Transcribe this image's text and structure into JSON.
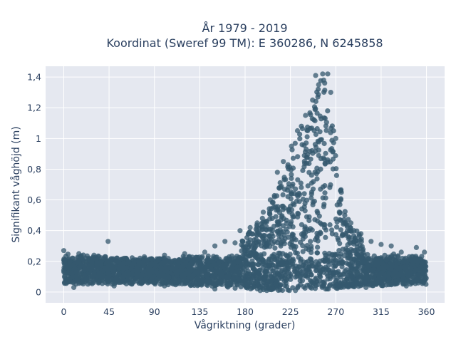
{
  "chart_data": {
    "type": "scatter",
    "title_lines": [
      "År 1979 - 2019",
      "Koordinat (Sweref 99 TM): E 360286, N 6245858"
    ],
    "xlabel": "Vågriktning (grader)",
    "ylabel": "Signifikant våghöjd (m)",
    "xlim": [
      -18,
      378
    ],
    "ylim": [
      -0.07,
      1.47
    ],
    "x_ticks": [
      0,
      45,
      90,
      135,
      180,
      225,
      270,
      315,
      360
    ],
    "x_tick_labels": [
      "0",
      "45",
      "90",
      "135",
      "180",
      "225",
      "270",
      "315",
      "360"
    ],
    "y_ticks": [
      0,
      0.2,
      0.4,
      0.6,
      0.8,
      1.0,
      1.2,
      1.4
    ],
    "y_tick_labels": [
      "0",
      "0,2",
      "0,4",
      "0,6",
      "0,8",
      "1",
      "1,2",
      "1,4"
    ],
    "grid": true,
    "colors": {
      "marker": "#34586e",
      "plot_background": "#e5e8f0",
      "grid": "#ffffff"
    },
    "series": [
      {
        "envelope_x": [
          0,
          45,
          90,
          135,
          160,
          180,
          200,
          215,
          225,
          235,
          245,
          250,
          255,
          260,
          265,
          270,
          280,
          300,
          315,
          330,
          360
        ],
        "envelope_max": [
          0.26,
          0.23,
          0.22,
          0.24,
          0.31,
          0.36,
          0.5,
          0.72,
          0.9,
          1.07,
          1.24,
          1.33,
          1.38,
          1.4,
          1.28,
          0.88,
          0.5,
          0.33,
          0.3,
          0.25,
          0.27
        ],
        "envelope_min": [
          0.05,
          0.05,
          0.05,
          0.04,
          0.03,
          0.02,
          0.01,
          0.01,
          0.01,
          0.02,
          0.02,
          0.02,
          0.02,
          0.02,
          0.02,
          0.02,
          0.03,
          0.04,
          0.04,
          0.05,
          0.05
        ],
        "points": [
          [
            0,
            0.27
          ],
          [
            44,
            0.33
          ],
          [
            250,
            1.41
          ],
          [
            257,
            1.42
          ],
          [
            262,
            1.42
          ],
          [
            265,
            1.3
          ],
          [
            270,
            1.0
          ],
          [
            275,
            0.6
          ],
          [
            253,
            1.35
          ],
          [
            258,
            1.38
          ],
          [
            247,
            1.25
          ],
          [
            240,
            1.15
          ],
          [
            232,
            1.05
          ],
          [
            226,
            0.95
          ],
          [
            218,
            0.85
          ],
          [
            212,
            0.78
          ],
          [
            205,
            0.6
          ],
          [
            198,
            0.52
          ],
          [
            192,
            0.45
          ],
          [
            185,
            0.42
          ],
          [
            175,
            0.4
          ],
          [
            170,
            0.32
          ],
          [
            160,
            0.33
          ],
          [
            150,
            0.3
          ],
          [
            140,
            0.26
          ],
          [
            120,
            0.25
          ],
          [
            100,
            0.24
          ],
          [
            80,
            0.23
          ],
          [
            60,
            0.22
          ],
          [
            30,
            0.24
          ],
          [
            15,
            0.25
          ],
          [
            285,
            0.45
          ],
          [
            295,
            0.38
          ],
          [
            305,
            0.33
          ],
          [
            315,
            0.31
          ],
          [
            325,
            0.3
          ],
          [
            335,
            0.26
          ],
          [
            350,
            0.29
          ],
          [
            358,
            0.26
          ],
          [
            10,
            0.03
          ],
          [
            50,
            0.04
          ],
          [
            100,
            0.04
          ],
          [
            150,
            0.02
          ],
          [
            195,
            0.01
          ],
          [
            230,
            0.01
          ],
          [
            260,
            0.02
          ],
          [
            300,
            0.03
          ],
          [
            340,
            0.04
          ]
        ]
      }
    ]
  }
}
